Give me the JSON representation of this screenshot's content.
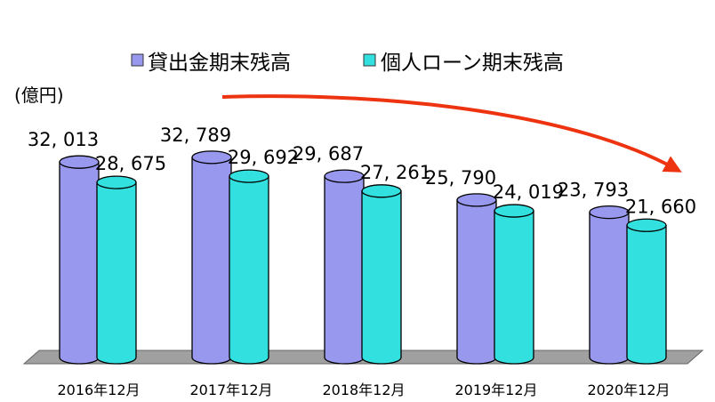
{
  "chart_data": {
    "type": "bar",
    "unit_label": "(億円)",
    "categories": [
      "2016年12月",
      "2017年12月",
      "2018年12月",
      "2019年12月",
      "2020年12月"
    ],
    "series": [
      {
        "name": "貸出金期末残高",
        "values": [
          32013,
          32789,
          29687,
          25790,
          23793
        ],
        "labels": [
          "32, 013",
          "32, 789",
          "29, 687",
          "25, 790",
          "23, 793"
        ],
        "color": "#9898ee"
      },
      {
        "name": "個人ローン期末残高",
        "values": [
          28675,
          29692,
          27261,
          24019,
          21660
        ],
        "labels": [
          "28, 675",
          "29, 692",
          "27, 261",
          "24, 019",
          "21, 660"
        ],
        "color": "#33e0e0"
      }
    ],
    "legend_position": "top",
    "trend_arrow_color": "#ee3311",
    "floor_color": "#a0a0a0"
  }
}
